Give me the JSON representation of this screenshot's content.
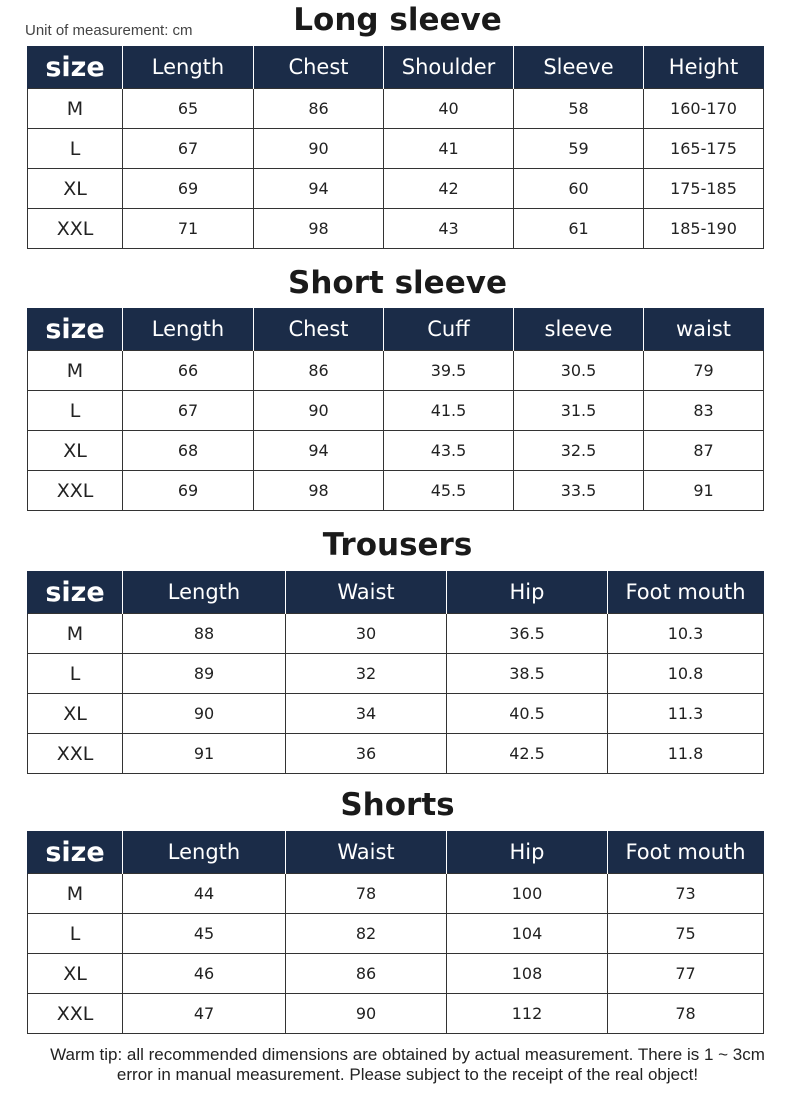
{
  "unit_note": "Unit of measurement: cm",
  "sections": [
    {
      "title": "Long sleeve",
      "headers": [
        "size",
        "Length",
        "Chest",
        "Shoulder",
        "Sleeve",
        "Height"
      ],
      "rows": [
        [
          "M",
          "65",
          "86",
          "40",
          "58",
          "160-170"
        ],
        [
          "L",
          "67",
          "90",
          "41",
          "59",
          "165-175"
        ],
        [
          "XL",
          "69",
          "94",
          "42",
          "60",
          "175-185"
        ],
        [
          "XXL",
          "71",
          "98",
          "43",
          "61",
          "185-190"
        ]
      ]
    },
    {
      "title": "Short sleeve",
      "headers": [
        "size",
        "Length",
        "Chest",
        "Cuff",
        "sleeve",
        "waist"
      ],
      "rows": [
        [
          "M",
          "66",
          "86",
          "39.5",
          "30.5",
          "79"
        ],
        [
          "L",
          "67",
          "90",
          "41.5",
          "31.5",
          "83"
        ],
        [
          "XL",
          "68",
          "94",
          "43.5",
          "32.5",
          "87"
        ],
        [
          "XXL",
          "69",
          "98",
          "45.5",
          "33.5",
          "91"
        ]
      ]
    },
    {
      "title": "Trousers",
      "headers": [
        "size",
        "Length",
        "Waist",
        "Hip",
        "Foot mouth"
      ],
      "rows": [
        [
          "M",
          "88",
          "30",
          "36.5",
          "10.3"
        ],
        [
          "L",
          "89",
          "32",
          "38.5",
          "10.8"
        ],
        [
          "XL",
          "90",
          "34",
          "40.5",
          "11.3"
        ],
        [
          "XXL",
          "91",
          "36",
          "42.5",
          "11.8"
        ]
      ]
    },
    {
      "title": "Shorts",
      "headers": [
        "size",
        "Length",
        "Waist",
        "Hip",
        "Foot mouth"
      ],
      "rows": [
        [
          "M",
          "44",
          "78",
          "100",
          "73"
        ],
        [
          "L",
          "45",
          "82",
          "104",
          "75"
        ],
        [
          "XL",
          "46",
          "86",
          "108",
          "77"
        ],
        [
          "XXL",
          "47",
          "90",
          "112",
          "78"
        ]
      ]
    }
  ],
  "tip": "Warm tip: all recommended dimensions are obtained by actual measurement. There is 1 ~ 3cm error in manual measurement. Please subject to the receipt of the real object!",
  "colors": {
    "header_bg": "#1b2c48"
  }
}
